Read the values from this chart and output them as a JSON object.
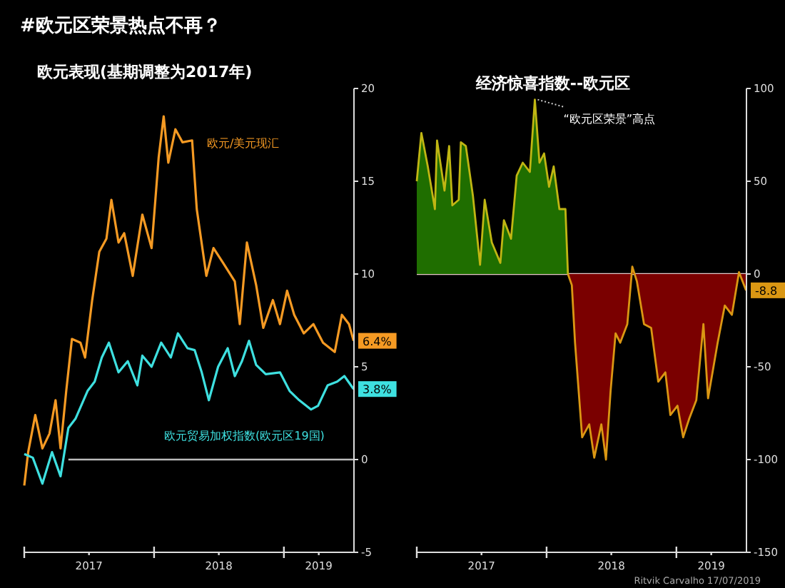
{
  "chart_data": [
    {
      "type": "line",
      "title": "#欧元区荣景热点不再？",
      "subtitle": "欧元表现(基期调整为2017年)",
      "xlim": [
        "2017-01-01",
        "2019-07-17"
      ],
      "xticks": [
        {
          "value": "2017-01-01",
          "label": null
        },
        {
          "value": "2017-07-02",
          "label": "2017"
        },
        {
          "value": "2018-01-01",
          "label": null
        },
        {
          "value": "2018-07-02",
          "label": "2018"
        },
        {
          "value": "2019-01-01",
          "label": null
        },
        {
          "value": "2019-04-09",
          "label": "2019"
        }
      ],
      "ylim": [
        -5,
        20
      ],
      "yticks": [
        -5,
        0,
        5,
        10,
        15,
        20
      ],
      "grid": false,
      "legend": false,
      "ref_lines": [
        {
          "axis": "y",
          "value": 0,
          "color": "#bbbbbb"
        }
      ],
      "series": [
        {
          "name": "欧元/美元现汇",
          "color": "#f59a23",
          "x": [
            "2017-01-01",
            "2017-01-12",
            "2017-02-01",
            "2017-02-21",
            "2017-03-13",
            "2017-03-30",
            "2017-04-13",
            "2017-04-29",
            "2017-05-15",
            "2017-06-08",
            "2017-06-21",
            "2017-07-11",
            "2017-07-31",
            "2017-08-20",
            "2017-09-03",
            "2017-09-23",
            "2017-10-09",
            "2017-11-02",
            "2017-11-29",
            "2017-12-25",
            "2018-01-14",
            "2018-01-28",
            "2018-02-10",
            "2018-03-02",
            "2018-03-22",
            "2018-04-18",
            "2018-05-01",
            "2018-05-28",
            "2018-06-17",
            "2018-07-14",
            "2018-08-16",
            "2018-08-30",
            "2018-09-19",
            "2018-10-15",
            "2018-11-04",
            "2018-12-01",
            "2018-12-21",
            "2019-01-10",
            "2019-01-30",
            "2019-02-26",
            "2019-03-25",
            "2019-04-21",
            "2019-05-24",
            "2019-06-13",
            "2019-07-03",
            "2019-07-16"
          ],
          "values": [
            -1.4,
            0.4,
            2.4,
            0.6,
            1.4,
            3.2,
            0.6,
            3.7,
            6.5,
            6.3,
            5.5,
            8.6,
            11.2,
            11.9,
            14.0,
            11.7,
            12.2,
            9.9,
            13.2,
            11.4,
            16.3,
            18.5,
            16.0,
            17.8,
            17.1,
            17.2,
            13.5,
            9.9,
            11.4,
            10.6,
            9.6,
            7.3,
            11.7,
            9.4,
            7.1,
            8.6,
            7.3,
            9.1,
            7.8,
            6.8,
            7.3,
            6.3,
            5.8,
            7.8,
            7.3,
            6.4
          ],
          "value_labels": [
            null,
            null,
            null,
            null,
            null,
            null,
            null,
            null,
            null,
            null,
            null,
            null,
            null,
            null,
            null,
            null,
            null,
            null,
            null,
            null,
            null,
            null,
            null,
            null,
            null,
            null,
            null,
            null,
            null,
            null,
            null,
            null,
            null,
            null,
            null,
            null,
            null,
            null,
            null,
            null,
            null,
            null,
            null,
            null,
            null,
            "6.4%"
          ]
        },
        {
          "name": "欧元贸易加权指数(欧元区19国)",
          "color": "#3ee0e0",
          "x": [
            "2017-01-01",
            "2017-01-25",
            "2017-02-21",
            "2017-03-20",
            "2017-04-13",
            "2017-05-05",
            "2017-05-25",
            "2017-06-28",
            "2017-07-18",
            "2017-08-07",
            "2017-08-27",
            "2017-09-23",
            "2017-10-19",
            "2017-11-15",
            "2017-11-29",
            "2017-12-25",
            "2018-01-21",
            "2018-02-17",
            "2018-03-09",
            "2018-04-05",
            "2018-04-25",
            "2018-05-15",
            "2018-06-04",
            "2018-06-30",
            "2018-07-27",
            "2018-08-16",
            "2018-09-05",
            "2018-09-25",
            "2018-10-15",
            "2018-11-11",
            "2018-12-21",
            "2019-01-17",
            "2019-02-13",
            "2019-03-18",
            "2019-04-07",
            "2019-05-04",
            "2019-05-31",
            "2019-06-20",
            "2019-07-16"
          ],
          "values": [
            0.3,
            0.1,
            -1.3,
            0.4,
            -0.9,
            1.7,
            2.2,
            3.7,
            4.2,
            5.5,
            6.3,
            4.7,
            5.3,
            4.0,
            5.6,
            5.0,
            6.3,
            5.5,
            6.8,
            6.0,
            5.9,
            4.7,
            3.2,
            5.0,
            6.0,
            4.5,
            5.3,
            6.4,
            5.1,
            4.6,
            4.7,
            3.7,
            3.2,
            2.7,
            2.9,
            4.0,
            4.2,
            4.5,
            3.8
          ],
          "value_labels": [
            null,
            null,
            null,
            null,
            null,
            null,
            null,
            null,
            null,
            null,
            null,
            null,
            null,
            null,
            null,
            null,
            null,
            null,
            null,
            null,
            null,
            null,
            null,
            null,
            null,
            null,
            null,
            null,
            null,
            null,
            null,
            null,
            null,
            null,
            null,
            null,
            null,
            null,
            "3.8%"
          ]
        }
      ]
    },
    {
      "type": "area",
      "title": "经济惊喜指数--欧元区",
      "xlim": [
        "2017-01-01",
        "2019-07-17"
      ],
      "xticks": [
        {
          "value": "2017-01-01",
          "label": null
        },
        {
          "value": "2017-07-02",
          "label": "2017"
        },
        {
          "value": "2018-01-01",
          "label": null
        },
        {
          "value": "2018-07-02",
          "label": "2018"
        },
        {
          "value": "2019-01-01",
          "label": null
        },
        {
          "value": "2019-04-09",
          "label": "2019"
        }
      ],
      "ylim": [
        -150,
        100
      ],
      "yticks": [
        -150,
        -100,
        -50,
        0,
        50,
        100
      ],
      "grid": false,
      "legend": false,
      "ref_lines": [
        {
          "axis": "y",
          "value": 0,
          "color": "#e8c8c8"
        }
      ],
      "annotations": [
        {
          "text": "“欧元区荣景”高点",
          "x": "2017-11-29",
          "y": 94
        },
        "Ritvik Carvalho 17/07/2019"
      ],
      "series": [
        {
          "color": "#1f6e00",
          "x": [
            "2017-01-01",
            "2017-01-14",
            "2017-02-01",
            "2017-02-21",
            "2017-02-27",
            "2017-03-20",
            "2017-04-02",
            "2017-04-11",
            "2017-04-29",
            "2017-05-05",
            "2017-05-19",
            "2017-06-08",
            "2017-06-28",
            "2017-07-11",
            "2017-07-31",
            "2017-08-24",
            "2017-09-03",
            "2017-09-23",
            "2017-10-09",
            "2017-10-26",
            "2017-11-15",
            "2017-11-29",
            "2017-12-12",
            "2017-12-25",
            "2018-01-08",
            "2018-01-21",
            "2018-02-06",
            "2018-02-23",
            "2018-03-02"
          ],
          "values": [
            50,
            76,
            58,
            35,
            72,
            45,
            69,
            37,
            40,
            71,
            69,
            42,
            5,
            40,
            17,
            6,
            29,
            19,
            53,
            60,
            55,
            94,
            60,
            65,
            47,
            58,
            35,
            35,
            0
          ]
        },
        {
          "color": "#7a0000",
          "x": [
            "2018-03-02",
            "2018-03-13",
            "2018-03-22",
            "2018-04-11",
            "2018-05-01",
            "2018-05-15",
            "2018-06-04",
            "2018-06-17",
            "2018-06-30",
            "2018-07-14",
            "2018-07-27",
            "2018-08-16",
            "2018-08-30",
            "2018-09-12",
            "2018-10-02",
            "2018-10-22",
            "2018-11-11",
            "2018-12-01",
            "2018-12-15",
            "2019-01-04",
            "2019-01-20",
            "2019-02-06",
            "2019-02-26",
            "2019-03-18",
            "2019-03-31",
            "2019-04-27",
            "2019-05-17",
            "2019-06-06",
            "2019-06-26",
            "2019-07-16"
          ],
          "values": [
            0,
            -6,
            -37,
            -88,
            -81,
            -99,
            -81,
            -100,
            -63,
            -32,
            -37,
            -27,
            4,
            -4,
            -27,
            -29,
            -58,
            -53,
            -76,
            -71,
            -88,
            -78,
            -68,
            -27,
            -67,
            -37,
            -17,
            -22,
            1,
            -8.8
          ],
          "value_labels": [
            null,
            null,
            null,
            null,
            null,
            null,
            null,
            null,
            null,
            null,
            null,
            null,
            null,
            null,
            null,
            null,
            null,
            null,
            null,
            null,
            null,
            null,
            null,
            null,
            null,
            null,
            null,
            null,
            null,
            "-8.8"
          ]
        }
      ]
    }
  ]
}
